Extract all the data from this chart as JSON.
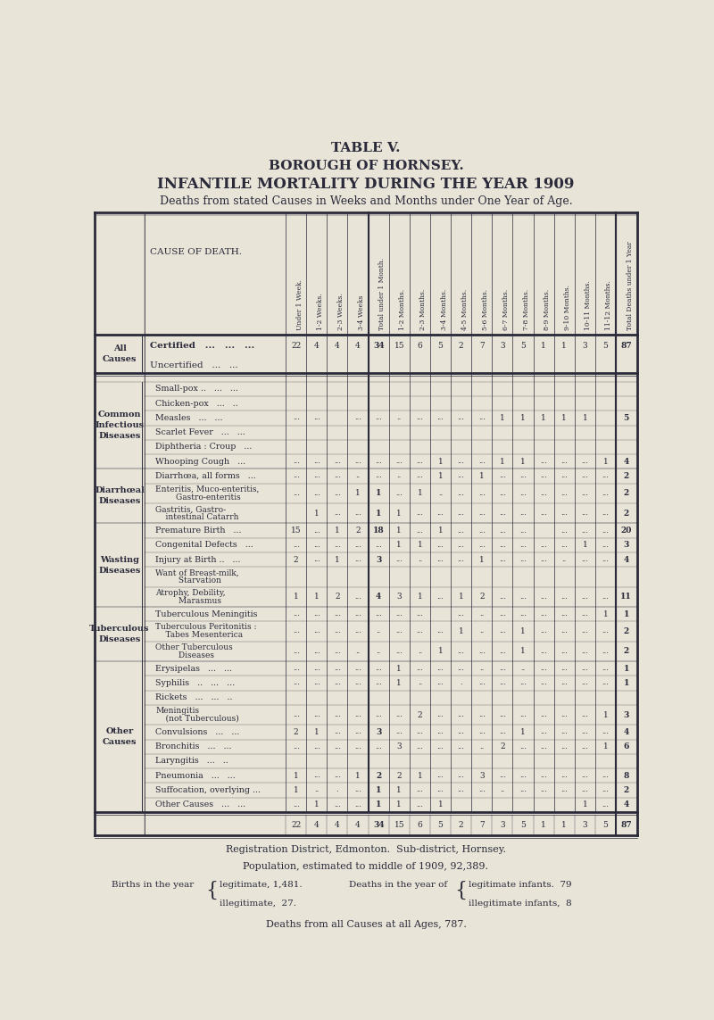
{
  "title1": "TABLE V.",
  "title2": "BOROUGH OF HORNSEY.",
  "title3": "INFANTILE MORTALITY DURING THE YEAR 1909",
  "title4": "Deaths from stated Causes in Weeks and Months under One Year of Age.",
  "col_headers": [
    "Under 1 Week.",
    "1-2 Weeks.",
    "2-3 Weeks.",
    "3-4 Weeks",
    "Total under 1 Month.",
    "1-2 Months.",
    "2-3 Months.",
    "3-4 Months.",
    "4-5 Months.",
    "5-6 Months.",
    "6-7 Months.",
    "7-8 Months.",
    "8-9 Months.",
    "9-10 Months.",
    "10-11 Months.",
    "11-12 Months.",
    "Total Deaths under 1 Year"
  ],
  "bg_color": "#e8e4d8",
  "text_color": "#2a2a3a",
  "total_row": [
    "22",
    "4",
    "4",
    "4",
    "34",
    "15",
    "6",
    "5",
    "2",
    "7",
    "3",
    "5",
    "1",
    "1",
    "3",
    "5",
    "87"
  ]
}
